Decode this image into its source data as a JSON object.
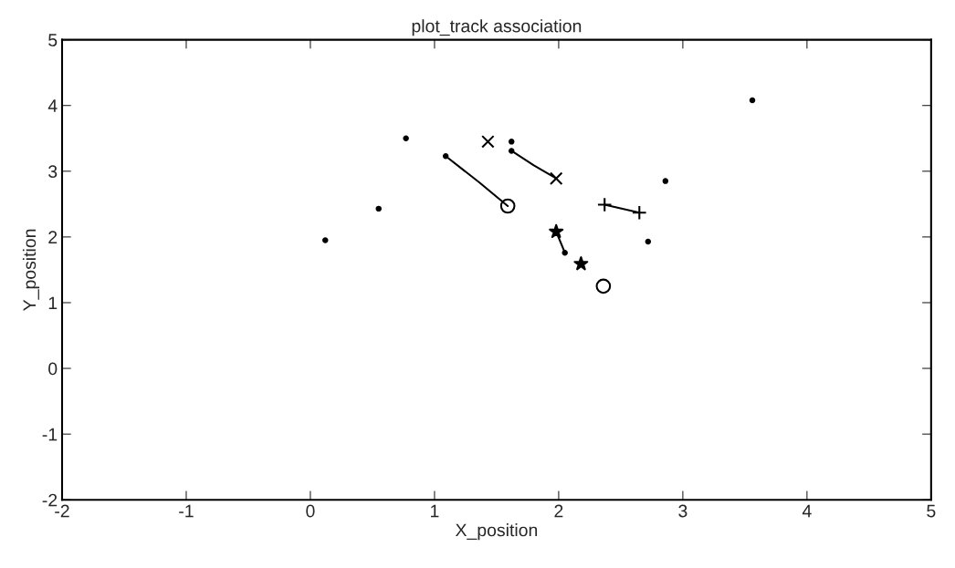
{
  "chart_data": {
    "type": "scatter",
    "title": "plot_track association",
    "xlabel": "X_position",
    "ylabel": "Y_position",
    "xlim": [
      -2,
      5
    ],
    "ylim": [
      -2,
      5
    ],
    "xticks": [
      -2,
      -1,
      0,
      1,
      2,
      3,
      4,
      5
    ],
    "yticks": [
      -2,
      -1,
      0,
      1,
      2,
      3,
      4,
      5
    ],
    "grid": false,
    "legend": false,
    "series": [
      {
        "marker": "point",
        "color": "#000000",
        "x": [
          0.12,
          0.55,
          0.77,
          1.09,
          1.62,
          1.62,
          2.05,
          2.72,
          2.86,
          3.56
        ],
        "values": [
          1.95,
          2.43,
          3.5,
          3.23,
          3.45,
          3.31,
          1.76,
          1.93,
          2.85,
          4.08
        ]
      },
      {
        "type": "line",
        "marker": "none",
        "color": "#000000",
        "x": [
          1.09,
          1.36,
          1.59
        ],
        "values": [
          3.23,
          2.83,
          2.47
        ]
      },
      {
        "type": "line",
        "marker": "none",
        "color": "#000000",
        "x": [
          1.62,
          1.8,
          1.98
        ],
        "values": [
          3.31,
          3.09,
          2.89
        ]
      },
      {
        "type": "line",
        "marker": "plus",
        "color": "#000000",
        "x": [
          2.37,
          2.65
        ],
        "values": [
          2.49,
          2.37
        ]
      },
      {
        "type": "line",
        "marker": "none",
        "color": "#000000",
        "x": [
          1.98,
          2.05
        ],
        "values": [
          2.08,
          1.76
        ]
      },
      {
        "marker": "circle",
        "color": "#000000",
        "x": [
          1.59,
          2.36
        ],
        "values": [
          2.47,
          1.25
        ]
      },
      {
        "marker": "cross",
        "color": "#000000",
        "x": [
          1.43,
          1.98
        ],
        "values": [
          3.45,
          2.89
        ]
      },
      {
        "marker": "star",
        "color": "#000000",
        "x": [
          1.98,
          2.18
        ],
        "values": [
          2.08,
          1.59
        ]
      }
    ]
  }
}
